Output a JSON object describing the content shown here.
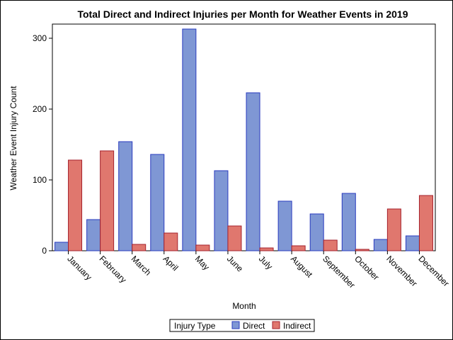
{
  "chart_data": {
    "type": "bar",
    "title": "Total Direct and Indirect Injuries per Month for Weather Events in 2019",
    "xlabel": "Month",
    "ylabel": "Weather Event Injury Count",
    "categories": [
      "January",
      "February",
      "March",
      "April",
      "May",
      "June",
      "July",
      "August",
      "September",
      "October",
      "November",
      "December"
    ],
    "series": [
      {
        "name": "Direct",
        "color": "#7F97D4",
        "stroke": "#2A3BBF",
        "values": [
          12,
          44,
          154,
          136,
          313,
          113,
          223,
          70,
          52,
          81,
          16,
          21
        ]
      },
      {
        "name": "Indirect",
        "color": "#E0776E",
        "stroke": "#A4212C",
        "values": [
          128,
          141,
          9,
          25,
          8,
          35,
          4,
          7,
          15,
          2,
          59,
          78
        ]
      }
    ],
    "ylim": [
      0,
      320
    ],
    "yticks": [
      0,
      100,
      200,
      300
    ],
    "grid": false,
    "legend": {
      "title": "Injury Type",
      "position": "bottom-center"
    }
  }
}
